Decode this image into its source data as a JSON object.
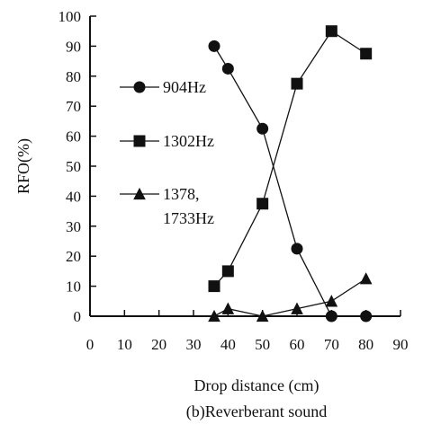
{
  "chart_data": {
    "type": "line",
    "title": "",
    "caption": "(b)Reverberant sound",
    "xlabel": "Drop distance (cm)",
    "ylabel": "RFO(%)",
    "xlim": [
      0,
      90
    ],
    "ylim": [
      0,
      100
    ],
    "x_ticks": [
      0,
      10,
      20,
      30,
      40,
      50,
      60,
      70,
      80,
      90
    ],
    "y_ticks": [
      0,
      10,
      20,
      30,
      40,
      50,
      60,
      70,
      80,
      90,
      100
    ],
    "grid": false,
    "legend_placement": "left-inside",
    "series": [
      {
        "name": "904Hz",
        "marker": "circle",
        "x": [
          36,
          40,
          50,
          60,
          70,
          80
        ],
        "values": [
          90,
          82.5,
          62.5,
          22.5,
          0,
          0
        ]
      },
      {
        "name": "1302Hz",
        "marker": "square",
        "x": [
          36,
          40,
          50,
          60,
          70,
          80
        ],
        "values": [
          10,
          15,
          37.5,
          77.5,
          95,
          87.5
        ]
      },
      {
        "name": "1378,\n1733Hz",
        "name_lines": [
          "1378,",
          "1733Hz"
        ],
        "marker": "triangle",
        "x": [
          36,
          40,
          50,
          60,
          70,
          80
        ],
        "values": [
          0,
          2.5,
          0,
          2.5,
          5,
          12.5
        ]
      }
    ]
  }
}
